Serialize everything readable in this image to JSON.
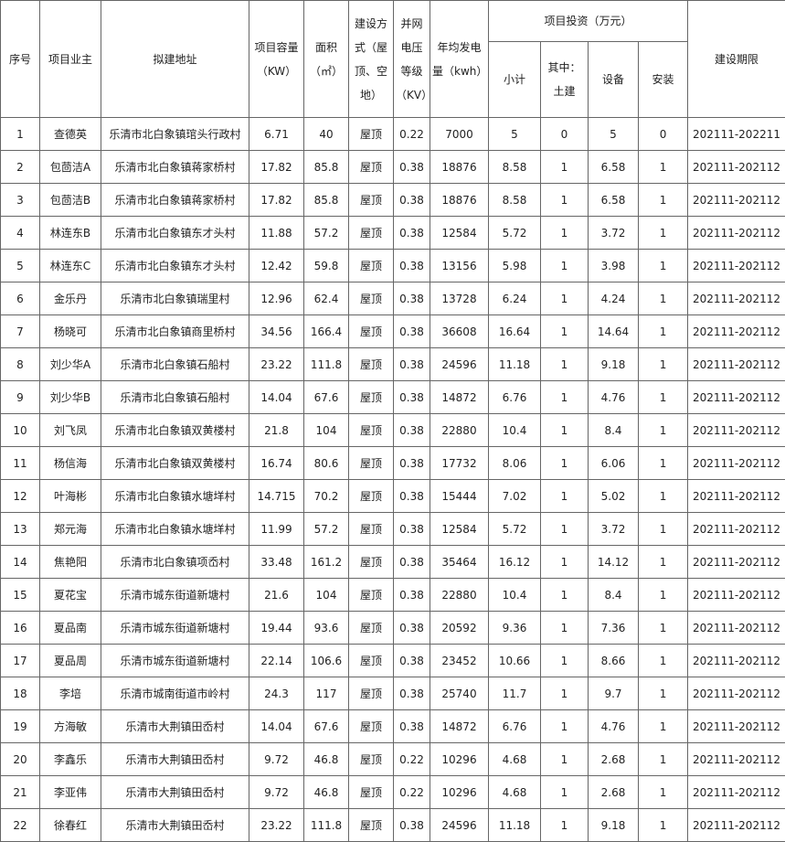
{
  "table": {
    "header": [
      [
        "序号",
        "项目业主",
        "拟建地址",
        "项目容量（KW）",
        "面积（㎡）",
        "建设方式（屋顶、空地）",
        "并网电压等级（KV）",
        "年均发电量（kwh）",
        "项目投资（万元）",
        "建设期限"
      ],
      [
        "小计",
        "其中：土建",
        "设备",
        "安装"
      ]
    ],
    "rows": [
      [
        1,
        "查德英",
        "乐清市北白象镇琯头行政村",
        6.71,
        40,
        "屋顶",
        0.22,
        7000,
        5,
        0,
        5,
        0,
        "202111-202211"
      ],
      [
        2,
        "包茴洁A",
        "乐清市北白象镇蒋家桥村",
        17.82,
        85.8,
        "屋顶",
        0.38,
        18876,
        8.58,
        1,
        6.58,
        1,
        "202111-202112"
      ],
      [
        3,
        "包茴洁B",
        "乐清市北白象镇蒋家桥村",
        17.82,
        85.8,
        "屋顶",
        0.38,
        18876,
        8.58,
        1,
        6.58,
        1,
        "202111-202112"
      ],
      [
        4,
        "林连东B",
        "乐清市北白象镇东才头村",
        11.88,
        57.2,
        "屋顶",
        0.38,
        12584,
        5.72,
        1,
        3.72,
        1,
        "202111-202112"
      ],
      [
        5,
        "林连东C",
        "乐清市北白象镇东才头村",
        12.42,
        59.8,
        "屋顶",
        0.38,
        13156,
        5.98,
        1,
        3.98,
        1,
        "202111-202112"
      ],
      [
        6,
        "金乐丹",
        "乐清市北白象镇瑞里村",
        12.96,
        62.4,
        "屋顶",
        0.38,
        13728,
        6.24,
        1,
        4.24,
        1,
        "202111-202112"
      ],
      [
        7,
        "杨晓可",
        "乐清市北白象镇商里桥村",
        34.56,
        166.4,
        "屋顶",
        0.38,
        36608,
        16.64,
        1,
        14.64,
        1,
        "202111-202112"
      ],
      [
        8,
        "刘少华A",
        "乐清市北白象镇石船村",
        23.22,
        111.8,
        "屋顶",
        0.38,
        24596,
        11.18,
        1,
        9.18,
        1,
        "202111-202112"
      ],
      [
        9,
        "刘少华B",
        "乐清市北白象镇石船村",
        14.04,
        67.6,
        "屋顶",
        0.38,
        14872,
        6.76,
        1,
        4.76,
        1,
        "202111-202112"
      ],
      [
        10,
        "刘飞凤",
        "乐清市北白象镇双黄楼村",
        21.8,
        104,
        "屋顶",
        0.38,
        22880,
        10.4,
        1,
        8.4,
        1,
        "202111-202112"
      ],
      [
        11,
        "杨信海",
        "乐清市北白象镇双黄楼村",
        16.74,
        80.6,
        "屋顶",
        0.38,
        17732,
        8.06,
        1,
        6.06,
        1,
        "202111-202112"
      ],
      [
        12,
        "叶海彬",
        "乐清市北白象镇水塘垟村",
        14.715,
        70.2,
        "屋顶",
        0.38,
        15444,
        7.02,
        1,
        5.02,
        1,
        "202111-202112"
      ],
      [
        13,
        "郑元海",
        "乐清市北白象镇水塘垟村",
        11.99,
        57.2,
        "屋顶",
        0.38,
        12584,
        5.72,
        1,
        3.72,
        1,
        "202111-202112"
      ],
      [
        14,
        "焦艳阳",
        "乐清市北白象镇项岙村",
        33.48,
        161.2,
        "屋顶",
        0.38,
        35464,
        16.12,
        1,
        14.12,
        1,
        "202111-202112"
      ],
      [
        15,
        "夏花宝",
        "乐清市城东街道新塘村",
        21.6,
        104,
        "屋顶",
        0.38,
        22880,
        10.4,
        1,
        8.4,
        1,
        "202111-202112"
      ],
      [
        16,
        "夏品南",
        "乐清市城东街道新塘村",
        19.44,
        93.6,
        "屋顶",
        0.38,
        20592,
        9.36,
        1,
        7.36,
        1,
        "202111-202112"
      ],
      [
        17,
        "夏品周",
        "乐清市城东街道新塘村",
        22.14,
        106.6,
        "屋顶",
        0.38,
        23452,
        10.66,
        1,
        8.66,
        1,
        "202111-202112"
      ],
      [
        18,
        "李培",
        "乐清市城南街道市岭村",
        24.3,
        117,
        "屋顶",
        0.38,
        25740,
        11.7,
        1,
        9.7,
        1,
        "202111-202112"
      ],
      [
        19,
        "方海敏",
        "乐清市大荆镇田岙村",
        14.04,
        67.6,
        "屋顶",
        0.38,
        14872,
        6.76,
        1,
        4.76,
        1,
        "202111-202112"
      ],
      [
        20,
        "李鑫乐",
        "乐清市大荆镇田岙村",
        9.72,
        46.8,
        "屋顶",
        0.22,
        10296,
        4.68,
        1,
        2.68,
        1,
        "202111-202112"
      ],
      [
        21,
        "李亚伟",
        "乐清市大荆镇田岙村",
        9.72,
        46.8,
        "屋顶",
        0.22,
        10296,
        4.68,
        1,
        2.68,
        1,
        "202111-202112"
      ],
      [
        22,
        "徐春红",
        "乐清市大荆镇田岙村",
        23.22,
        111.8,
        "屋顶",
        0.38,
        24596,
        11.18,
        1,
        9.18,
        1,
        "202111-202112"
      ]
    ]
  }
}
